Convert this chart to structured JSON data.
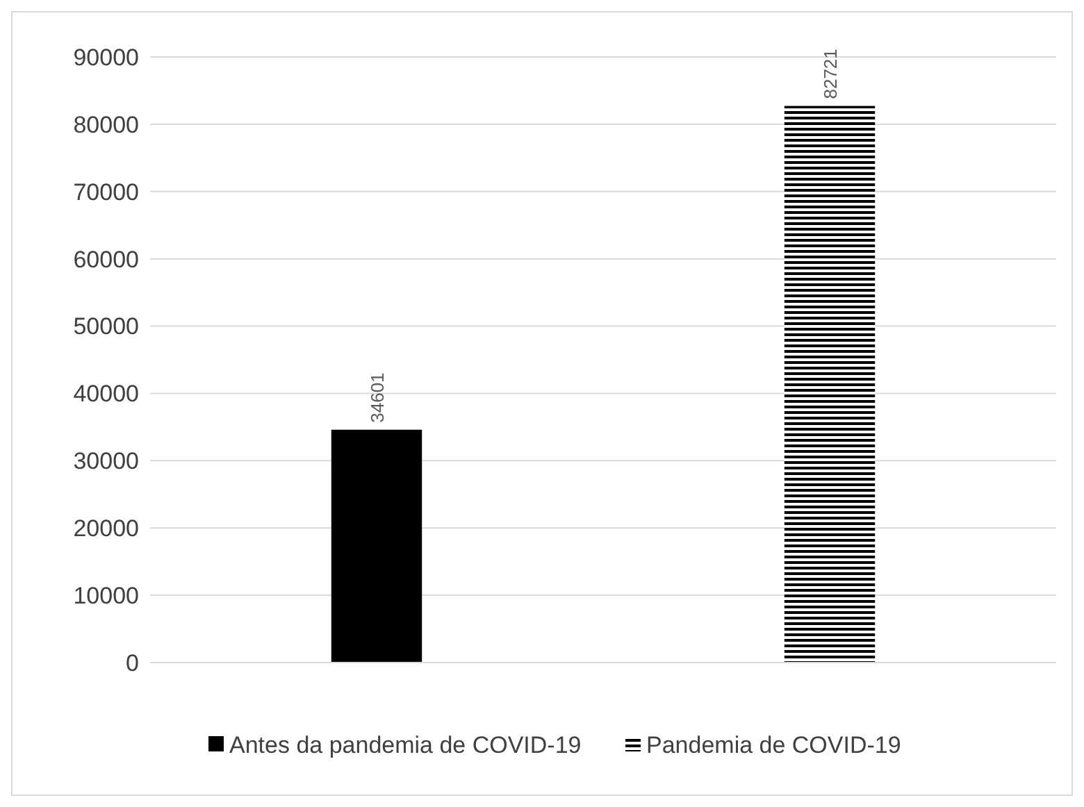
{
  "chart_data": {
    "type": "bar",
    "categories": [
      null,
      null
    ],
    "series": [
      {
        "name": "Antes da pandemia de COVID-19",
        "color": "#000000",
        "values": [
          34601,
          null
        ]
      },
      {
        "name": "Pandemia de COVID-19",
        "color": "#000000",
        "values": [
          null,
          82721
        ]
      }
    ],
    "ylim": [
      0,
      90000
    ],
    "yticks": [
      0,
      10000,
      20000,
      30000,
      40000,
      50000,
      60000,
      70000,
      80000,
      90000
    ],
    "grid": "y",
    "legend": "bottom",
    "data_labels": true
  }
}
